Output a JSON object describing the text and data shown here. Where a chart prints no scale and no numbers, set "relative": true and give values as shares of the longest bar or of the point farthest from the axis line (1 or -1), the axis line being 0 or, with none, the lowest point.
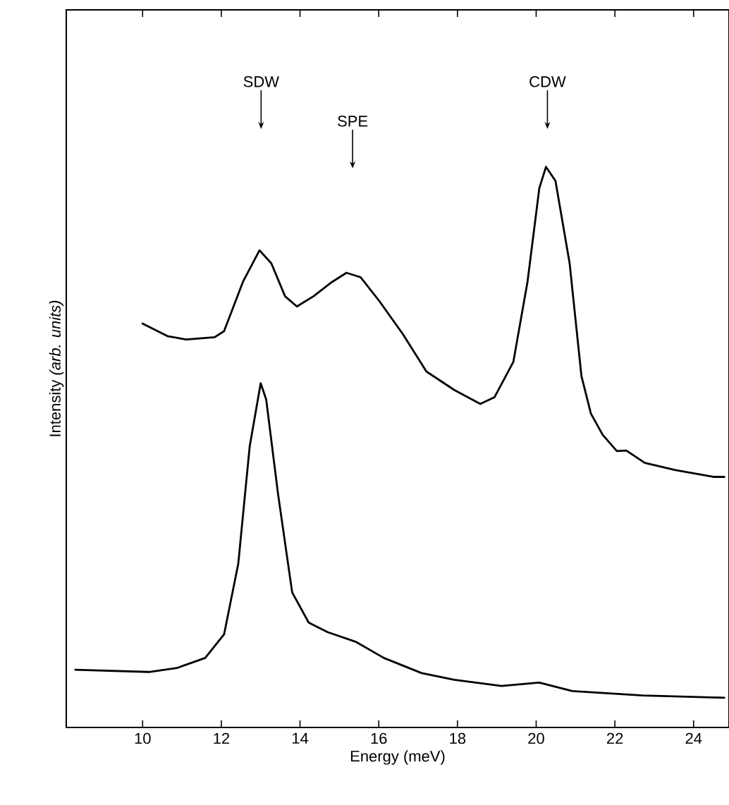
{
  "chart_data": {
    "type": "line",
    "relative": true,
    "xlabel": "Energy (meV)",
    "ylabel": "Intensity *(arb. units)*",
    "xlim": [
      8.06,
      24.9
    ],
    "xticks": [
      10,
      12,
      14,
      16,
      18,
      20,
      22,
      24
    ],
    "color": "#000000",
    "line_style": "solid",
    "marker": "none",
    "grid": false,
    "series": [
      {
        "x": [
          9.98,
          10.63,
          11.11,
          11.83,
          12.07,
          12.55,
          12.97,
          13.27,
          13.62,
          13.92,
          14.34,
          14.82,
          15.18,
          15.54,
          16.01,
          16.61,
          17.21,
          17.92,
          18.58,
          18.94,
          19.42,
          19.78,
          20.08,
          20.25,
          20.49,
          20.85,
          21.15,
          21.39,
          21.69,
          22.05,
          22.29,
          22.76,
          23.54,
          24.5,
          24.8
        ],
        "values": [
          0.721,
          0.698,
          0.692,
          0.696,
          0.707,
          0.795,
          0.851,
          0.828,
          0.769,
          0.751,
          0.769,
          0.795,
          0.811,
          0.803,
          0.761,
          0.702,
          0.635,
          0.602,
          0.577,
          0.589,
          0.652,
          0.795,
          0.962,
          1.0,
          0.975,
          0.828,
          0.627,
          0.56,
          0.522,
          0.493,
          0.494,
          0.472,
          0.459,
          0.447,
          0.447
        ]
      },
      {
        "x": [
          8.27,
          10.16,
          10.87,
          11.59,
          12.07,
          12.43,
          12.72,
          13.0,
          13.14,
          13.44,
          13.8,
          14.22,
          14.7,
          15.41,
          16.13,
          17.09,
          17.92,
          19.12,
          20.08,
          20.92,
          22.71,
          24.8
        ],
        "values": [
          0.103,
          0.099,
          0.106,
          0.124,
          0.166,
          0.292,
          0.501,
          0.614,
          0.585,
          0.417,
          0.241,
          0.187,
          0.17,
          0.153,
          0.124,
          0.097,
          0.085,
          0.074,
          0.08,
          0.065,
          0.057,
          0.053
        ]
      }
    ],
    "annotations": [
      "SDW",
      "SPE",
      "CDW"
    ]
  }
}
